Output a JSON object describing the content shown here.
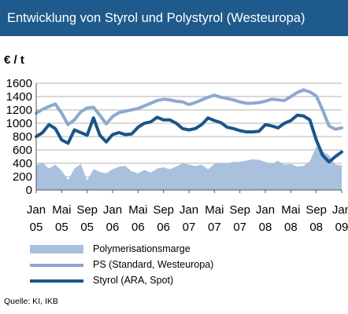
{
  "header": {
    "title": "Entwicklung von Styrol und Polystyrol (Westeuropa)"
  },
  "unit_label": "€ / t",
  "source": "Quelle: KI, IKB",
  "colors": {
    "title_bg": "#1f5a8c",
    "area": "#a9c0df",
    "ps_line": "#8ca9d0",
    "styrol_line": "#1b5488"
  },
  "chart_data": {
    "type": "line",
    "ylim": [
      0,
      1600
    ],
    "yticks": [
      0,
      200,
      400,
      600,
      800,
      1000,
      1200,
      1400,
      1600
    ],
    "grid": true,
    "legend_position": "bottom",
    "x_start": "2005-01",
    "x_ticks": [
      {
        "month": "Jan",
        "year": "05"
      },
      {
        "month": "Mai",
        "year": "05"
      },
      {
        "month": "Sep",
        "year": "05"
      },
      {
        "month": "Jan",
        "year": "06"
      },
      {
        "month": "Mai",
        "year": "06"
      },
      {
        "month": "Sep",
        "year": "06"
      },
      {
        "month": "Jan",
        "year": "07"
      },
      {
        "month": "Mai",
        "year": "07"
      },
      {
        "month": "Sep",
        "year": "07"
      },
      {
        "month": "Jan",
        "year": "08"
      },
      {
        "month": "Mai",
        "year": "08"
      },
      {
        "month": "Sep",
        "year": "08"
      },
      {
        "month": "Jan",
        "year": "09"
      }
    ],
    "series": [
      {
        "name": "Polymerisationsmarge",
        "kind": "area",
        "values": [
          370,
          410,
          320,
          380,
          290,
          150,
          320,
          390,
          140,
          310,
          270,
          250,
          310,
          350,
          360,
          280,
          250,
          300,
          260,
          320,
          340,
          310,
          350,
          400,
          380,
          360,
          380,
          310,
          390,
          410,
          400,
          420,
          420,
          440,
          460,
          450,
          420,
          390,
          440,
          380,
          390,
          350,
          360,
          430,
          650,
          580,
          520,
          380,
          370
        ]
      },
      {
        "name": "PS (Standard, Westeuropa)",
        "kind": "line",
        "values": [
          1150,
          1210,
          1250,
          1290,
          1150,
          980,
          1050,
          1170,
          1230,
          1240,
          1120,
          990,
          1100,
          1160,
          1180,
          1200,
          1220,
          1260,
          1300,
          1340,
          1360,
          1350,
          1330,
          1320,
          1280,
          1310,
          1350,
          1390,
          1420,
          1390,
          1370,
          1350,
          1320,
          1300,
          1300,
          1310,
          1330,
          1360,
          1350,
          1340,
          1400,
          1460,
          1500,
          1470,
          1410,
          1200,
          960,
          910,
          930
        ]
      },
      {
        "name": "Styrol (ARA, Spot)",
        "kind": "line",
        "values": [
          800,
          860,
          980,
          920,
          750,
          700,
          900,
          860,
          820,
          1080,
          820,
          720,
          830,
          860,
          830,
          840,
          940,
          1000,
          1020,
          1090,
          1050,
          1050,
          1000,
          920,
          900,
          920,
          980,
          1080,
          1040,
          1010,
          940,
          920,
          890,
          870,
          870,
          880,
          980,
          960,
          930,
          1000,
          1040,
          1120,
          1110,
          1050,
          750,
          520,
          420,
          500,
          570
        ]
      }
    ]
  }
}
